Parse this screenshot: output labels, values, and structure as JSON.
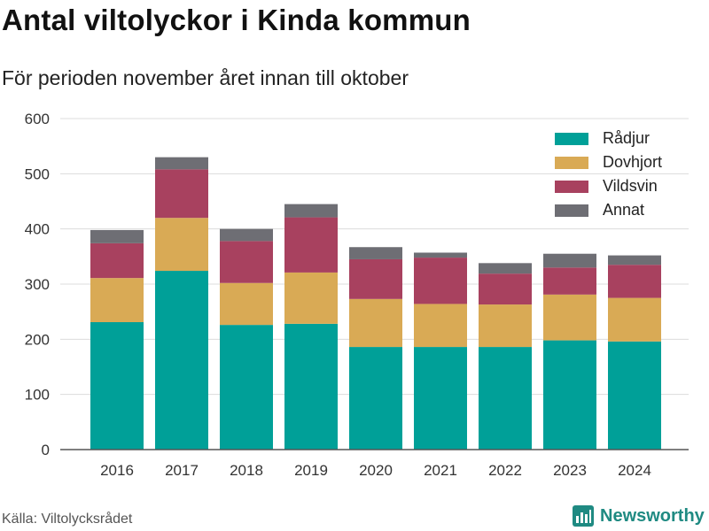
{
  "header": {
    "title": "Antal viltolyckor i Kinda kommun",
    "subtitle": "För perioden november året innan till oktober"
  },
  "footer": {
    "source": "Källa: Viltolycksrådet",
    "brand": "Newsworthy"
  },
  "icons": {
    "brand_logo": "newsworthy-logo-icon"
  },
  "chart_data": {
    "type": "bar",
    "stacked": true,
    "title": "Antal viltolyckor i Kinda kommun",
    "subtitle": "För perioden november året innan till oktober",
    "xlabel": "",
    "ylabel": "",
    "ylim": [
      0,
      600
    ],
    "yticks": [
      0,
      100,
      200,
      300,
      400,
      500,
      600
    ],
    "grid": true,
    "legend_position": "top-right",
    "categories": [
      "2016",
      "2017",
      "2018",
      "2019",
      "2020",
      "2021",
      "2022",
      "2023",
      "2024"
    ],
    "series": [
      {
        "name": "Rådjur",
        "color": "#00a098",
        "values": [
          231,
          324,
          226,
          228,
          186,
          186,
          186,
          198,
          196
        ]
      },
      {
        "name": "Dovhjort",
        "color": "#d9aa55",
        "values": [
          80,
          96,
          76,
          93,
          87,
          78,
          77,
          83,
          79
        ]
      },
      {
        "name": "Vildsvin",
        "color": "#a8415f",
        "values": [
          63,
          88,
          76,
          100,
          72,
          84,
          56,
          49,
          60
        ]
      },
      {
        "name": "Annat",
        "color": "#6e6e74",
        "values": [
          24,
          22,
          22,
          24,
          22,
          9,
          19,
          25,
          17
        ]
      }
    ]
  }
}
